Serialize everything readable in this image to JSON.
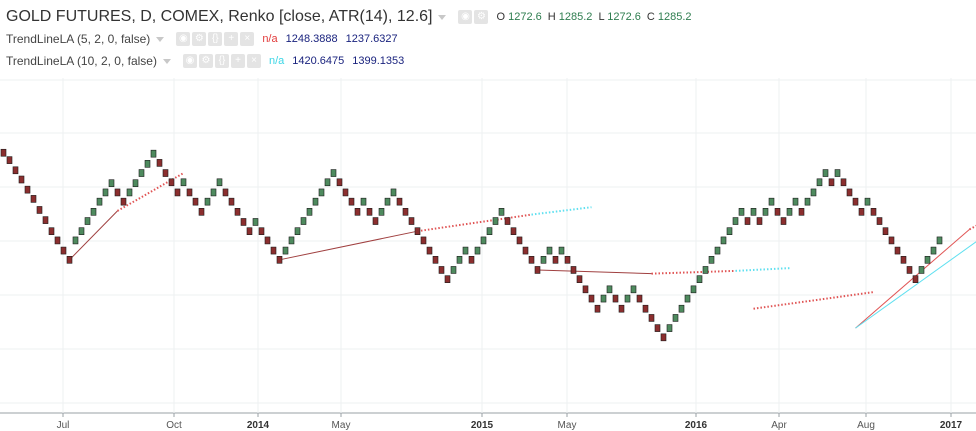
{
  "legend": {
    "main_title": "GOLD FUTURES, D, COMEX, Renko [close, ATR(14), 12.6]",
    "ohlc": [
      {
        "k": "O",
        "v": "1272.6"
      },
      {
        "k": "H",
        "v": "1285.2"
      },
      {
        "k": "L",
        "v": "1272.6"
      },
      {
        "k": "C",
        "v": "1285.2"
      }
    ],
    "indicators": [
      {
        "title": "TrendLineLA (5, 2, 0, false)",
        "na": "n/a",
        "v1": "1248.3888",
        "v2": "1237.6327"
      },
      {
        "title": "TrendLineLA (10, 2, 0, false)",
        "na": "n/a",
        "v1": "1420.6475",
        "v2": "1399.1353"
      }
    ]
  },
  "chart_data": {
    "type": "renko",
    "box_size": 12.6,
    "colors": {
      "up": "#4e8a5e",
      "down": "#8b2e2e",
      "trend_short": "#e05555",
      "trend_long": "#5fe0f0",
      "trend_hist": "#a04040"
    },
    "y_range": [
      1045,
      1408
    ],
    "x_tick_labels": [
      {
        "label": "Jul",
        "bold": false
      },
      {
        "label": "Oct",
        "bold": false
      },
      {
        "label": "2014",
        "bold": true
      },
      {
        "label": "May",
        "bold": false
      },
      {
        "label": "2015",
        "bold": true
      },
      {
        "label": "May",
        "bold": false
      },
      {
        "label": "2016",
        "bold": true
      },
      {
        "label": "Apr",
        "bold": false
      },
      {
        "label": "Aug",
        "bold": false
      },
      {
        "label": "2017",
        "bold": true
      }
    ],
    "bricks": [
      {
        "i": 0,
        "p": 1327,
        "up": false
      },
      {
        "i": 1,
        "p": 1319,
        "up": false
      },
      {
        "i": 2,
        "p": 1308,
        "up": false
      },
      {
        "i": 3,
        "p": 1298,
        "up": false
      },
      {
        "i": 4,
        "p": 1287,
        "up": false
      },
      {
        "i": 5,
        "p": 1277,
        "up": false
      },
      {
        "i": 6,
        "p": 1265,
        "up": false
      },
      {
        "i": 7,
        "p": 1254,
        "up": false
      },
      {
        "i": 8,
        "p": 1242,
        "up": false
      },
      {
        "i": 9,
        "p": 1232,
        "up": false
      },
      {
        "i": 10,
        "p": 1221,
        "up": false
      },
      {
        "i": 11,
        "p": 1211,
        "up": false
      },
      {
        "i": 12,
        "p": 1232,
        "up": true
      },
      {
        "i": 13,
        "p": 1242,
        "up": true
      },
      {
        "i": 14,
        "p": 1253,
        "up": true
      },
      {
        "i": 15,
        "p": 1263,
        "up": true
      },
      {
        "i": 16,
        "p": 1274,
        "up": true
      },
      {
        "i": 17,
        "p": 1284,
        "up": true
      },
      {
        "i": 18,
        "p": 1294,
        "up": true
      },
      {
        "i": 19,
        "p": 1284,
        "up": false
      },
      {
        "i": 20,
        "p": 1274,
        "up": false
      },
      {
        "i": 21,
        "p": 1284,
        "up": true
      },
      {
        "i": 22,
        "p": 1294,
        "up": true
      },
      {
        "i": 23,
        "p": 1305,
        "up": true
      },
      {
        "i": 24,
        "p": 1315,
        "up": true
      },
      {
        "i": 25,
        "p": 1326,
        "up": true
      },
      {
        "i": 26,
        "p": 1316,
        "up": false
      },
      {
        "i": 27,
        "p": 1305,
        "up": false
      },
      {
        "i": 28,
        "p": 1295,
        "up": false
      },
      {
        "i": 29,
        "p": 1284,
        "up": false
      },
      {
        "i": 30,
        "p": 1295,
        "up": true
      },
      {
        "i": 31,
        "p": 1284,
        "up": false
      },
      {
        "i": 32,
        "p": 1274,
        "up": false
      },
      {
        "i": 33,
        "p": 1263,
        "up": false
      },
      {
        "i": 34,
        "p": 1274,
        "up": true
      },
      {
        "i": 35,
        "p": 1284,
        "up": true
      },
      {
        "i": 36,
        "p": 1295,
        "up": true
      },
      {
        "i": 37,
        "p": 1284,
        "up": false
      },
      {
        "i": 38,
        "p": 1274,
        "up": false
      },
      {
        "i": 39,
        "p": 1263,
        "up": false
      },
      {
        "i": 40,
        "p": 1252,
        "up": false
      },
      {
        "i": 41,
        "p": 1242,
        "up": false
      },
      {
        "i": 42,
        "p": 1252,
        "up": true
      },
      {
        "i": 43,
        "p": 1242,
        "up": false
      },
      {
        "i": 44,
        "p": 1232,
        "up": false
      },
      {
        "i": 45,
        "p": 1221,
        "up": false
      },
      {
        "i": 46,
        "p": 1211,
        "up": false
      },
      {
        "i": 47,
        "p": 1221,
        "up": true
      },
      {
        "i": 48,
        "p": 1232,
        "up": true
      },
      {
        "i": 49,
        "p": 1242,
        "up": true
      },
      {
        "i": 50,
        "p": 1253,
        "up": true
      },
      {
        "i": 51,
        "p": 1263,
        "up": true
      },
      {
        "i": 52,
        "p": 1274,
        "up": true
      },
      {
        "i": 53,
        "p": 1284,
        "up": true
      },
      {
        "i": 54,
        "p": 1295,
        "up": true
      },
      {
        "i": 55,
        "p": 1305,
        "up": true
      },
      {
        "i": 56,
        "p": 1295,
        "up": false
      },
      {
        "i": 57,
        "p": 1284,
        "up": false
      },
      {
        "i": 58,
        "p": 1274,
        "up": false
      },
      {
        "i": 59,
        "p": 1263,
        "up": false
      },
      {
        "i": 60,
        "p": 1274,
        "up": true
      },
      {
        "i": 61,
        "p": 1263,
        "up": false
      },
      {
        "i": 62,
        "p": 1253,
        "up": false
      },
      {
        "i": 63,
        "p": 1263,
        "up": true
      },
      {
        "i": 64,
        "p": 1274,
        "up": true
      },
      {
        "i": 65,
        "p": 1284,
        "up": true
      },
      {
        "i": 66,
        "p": 1274,
        "up": false
      },
      {
        "i": 67,
        "p": 1263,
        "up": false
      },
      {
        "i": 68,
        "p": 1253,
        "up": false
      },
      {
        "i": 69,
        "p": 1242,
        "up": false
      },
      {
        "i": 70,
        "p": 1232,
        "up": false
      },
      {
        "i": 71,
        "p": 1221,
        "up": false
      },
      {
        "i": 72,
        "p": 1211,
        "up": false
      },
      {
        "i": 73,
        "p": 1200,
        "up": false
      },
      {
        "i": 74,
        "p": 1190,
        "up": false
      },
      {
        "i": 75,
        "p": 1200,
        "up": true
      },
      {
        "i": 76,
        "p": 1211,
        "up": true
      },
      {
        "i": 77,
        "p": 1221,
        "up": true
      },
      {
        "i": 78,
        "p": 1211,
        "up": false
      },
      {
        "i": 79,
        "p": 1221,
        "up": true
      },
      {
        "i": 80,
        "p": 1232,
        "up": true
      },
      {
        "i": 81,
        "p": 1242,
        "up": true
      },
      {
        "i": 82,
        "p": 1253,
        "up": true
      },
      {
        "i": 83,
        "p": 1263,
        "up": true
      },
      {
        "i": 84,
        "p": 1253,
        "up": false
      },
      {
        "i": 85,
        "p": 1242,
        "up": false
      },
      {
        "i": 86,
        "p": 1232,
        "up": false
      },
      {
        "i": 87,
        "p": 1221,
        "up": false
      },
      {
        "i": 88,
        "p": 1211,
        "up": false
      },
      {
        "i": 89,
        "p": 1200,
        "up": false
      },
      {
        "i": 90,
        "p": 1211,
        "up": true
      },
      {
        "i": 91,
        "p": 1221,
        "up": true
      },
      {
        "i": 92,
        "p": 1211,
        "up": false
      },
      {
        "i": 93,
        "p": 1221,
        "up": true
      },
      {
        "i": 94,
        "p": 1211,
        "up": false
      },
      {
        "i": 95,
        "p": 1200,
        "up": false
      },
      {
        "i": 96,
        "p": 1190,
        "up": false
      },
      {
        "i": 97,
        "p": 1179,
        "up": false
      },
      {
        "i": 98,
        "p": 1169,
        "up": false
      },
      {
        "i": 99,
        "p": 1158,
        "up": false
      },
      {
        "i": 100,
        "p": 1169,
        "up": true
      },
      {
        "i": 101,
        "p": 1179,
        "up": true
      },
      {
        "i": 102,
        "p": 1169,
        "up": false
      },
      {
        "i": 103,
        "p": 1158,
        "up": false
      },
      {
        "i": 104,
        "p": 1169,
        "up": true
      },
      {
        "i": 105,
        "p": 1179,
        "up": true
      },
      {
        "i": 106,
        "p": 1169,
        "up": false
      },
      {
        "i": 107,
        "p": 1158,
        "up": false
      },
      {
        "i": 108,
        "p": 1148,
        "up": false
      },
      {
        "i": 109,
        "p": 1137,
        "up": false
      },
      {
        "i": 110,
        "p": 1127,
        "up": false
      },
      {
        "i": 111,
        "p": 1137,
        "up": true
      },
      {
        "i": 112,
        "p": 1148,
        "up": true
      },
      {
        "i": 113,
        "p": 1158,
        "up": true
      },
      {
        "i": 114,
        "p": 1169,
        "up": true
      },
      {
        "i": 115,
        "p": 1179,
        "up": true
      },
      {
        "i": 116,
        "p": 1190,
        "up": true
      },
      {
        "i": 117,
        "p": 1200,
        "up": true
      },
      {
        "i": 118,
        "p": 1211,
        "up": true
      },
      {
        "i": 119,
        "p": 1221,
        "up": true
      },
      {
        "i": 120,
        "p": 1232,
        "up": true
      },
      {
        "i": 121,
        "p": 1242,
        "up": true
      },
      {
        "i": 122,
        "p": 1253,
        "up": true
      },
      {
        "i": 123,
        "p": 1263,
        "up": true
      },
      {
        "i": 124,
        "p": 1253,
        "up": false
      },
      {
        "i": 125,
        "p": 1263,
        "up": true
      },
      {
        "i": 126,
        "p": 1253,
        "up": false
      },
      {
        "i": 127,
        "p": 1263,
        "up": true
      },
      {
        "i": 128,
        "p": 1274,
        "up": true
      },
      {
        "i": 129,
        "p": 1263,
        "up": false
      },
      {
        "i": 130,
        "p": 1253,
        "up": false
      },
      {
        "i": 131,
        "p": 1263,
        "up": true
      },
      {
        "i": 132,
        "p": 1274,
        "up": true
      },
      {
        "i": 133,
        "p": 1263,
        "up": false
      },
      {
        "i": 134,
        "p": 1274,
        "up": true
      },
      {
        "i": 135,
        "p": 1284,
        "up": true
      },
      {
        "i": 136,
        "p": 1295,
        "up": true
      },
      {
        "i": 137,
        "p": 1305,
        "up": true
      },
      {
        "i": 138,
        "p": 1295,
        "up": false
      },
      {
        "i": 139,
        "p": 1305,
        "up": true
      },
      {
        "i": 140,
        "p": 1295,
        "up": false
      },
      {
        "i": 141,
        "p": 1284,
        "up": false
      },
      {
        "i": 142,
        "p": 1274,
        "up": false
      },
      {
        "i": 143,
        "p": 1263,
        "up": false
      },
      {
        "i": 144,
        "p": 1274,
        "up": true
      },
      {
        "i": 145,
        "p": 1263,
        "up": false
      },
      {
        "i": 146,
        "p": 1253,
        "up": false
      },
      {
        "i": 147,
        "p": 1242,
        "up": false
      },
      {
        "i": 148,
        "p": 1232,
        "up": false
      },
      {
        "i": 149,
        "p": 1221,
        "up": false
      },
      {
        "i": 150,
        "p": 1211,
        "up": false
      },
      {
        "i": 151,
        "p": 1200,
        "up": false
      },
      {
        "i": 152,
        "p": 1190,
        "up": false
      },
      {
        "i": 153,
        "p": 1200,
        "up": true
      },
      {
        "i": 154,
        "p": 1211,
        "up": true
      },
      {
        "i": 155,
        "p": 1221,
        "up": true
      },
      {
        "i": 156,
        "p": 1232,
        "up": true
      }
    ],
    "trend_lines": [
      {
        "from": [
          11,
          1211
        ],
        "to": [
          19,
          1264
        ],
        "style": "solid",
        "color": "trend_hist"
      },
      {
        "from": [
          19,
          1264
        ],
        "to": [
          30,
          1305
        ],
        "style": "dotted",
        "color": "trend_short"
      },
      {
        "from": [
          46,
          1211
        ],
        "to": [
          69,
          1242
        ],
        "style": "solid",
        "color": "trend_hist"
      },
      {
        "from": [
          69,
          1242
        ],
        "to": [
          88,
          1260
        ],
        "style": "dotted",
        "color": "trend_short"
      },
      {
        "from": [
          88,
          1260
        ],
        "to": [
          98,
          1268
        ],
        "style": "dotted",
        "color": "trend_long"
      },
      {
        "from": [
          89,
          1200
        ],
        "to": [
          108,
          1196
        ],
        "style": "solid",
        "color": "trend_hist"
      },
      {
        "from": [
          108,
          1196
        ],
        "to": [
          122,
          1199
        ],
        "style": "dotted",
        "color": "trend_short"
      },
      {
        "from": [
          122,
          1199
        ],
        "to": [
          131,
          1202
        ],
        "style": "dotted",
        "color": "trend_long"
      },
      {
        "from": [
          125,
          1158
        ],
        "to": [
          145,
          1176
        ],
        "style": "dotted",
        "color": "trend_short"
      },
      {
        "from": [
          142,
          1137
        ],
        "to": [
          161,
          1244
        ],
        "style": "solid",
        "color": "trend_short"
      },
      {
        "from": [
          161,
          1244
        ],
        "to": [
          168,
          1268
        ],
        "style": "dotted",
        "color": "trend_short"
      },
      {
        "from": [
          142,
          1137
        ],
        "to": [
          165,
          1244
        ],
        "style": "solid",
        "color": "trend_long"
      },
      {
        "from": [
          165,
          1244
        ],
        "to": [
          200,
          1400
        ],
        "style": "dotted",
        "color": "trend_long"
      },
      {
        "from": [
          164,
          1250
        ],
        "to": [
          197,
          1250
        ],
        "style": "dotted",
        "color": "trend_short"
      }
    ]
  }
}
